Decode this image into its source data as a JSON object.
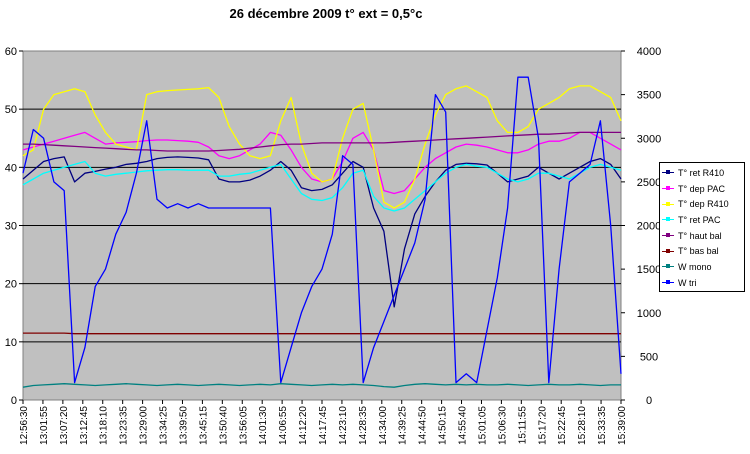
{
  "chart_data": {
    "type": "line",
    "title": "26 décembre 2009  t° ext = 0,5°c",
    "x_tick_labels": [
      "12:56:30",
      "13:01:55",
      "13:07:20",
      "13:12:45",
      "13:18:10",
      "13:23:35",
      "13:29:00",
      "13:34:25",
      "13:39:50",
      "13:45:15",
      "13:50:40",
      "13:56:05",
      "14:01:30",
      "14:06:55",
      "14:12:20",
      "14:17:45",
      "14:23:10",
      "14:28:35",
      "14:34:00",
      "14:39:25",
      "14:44:50",
      "14:50:15",
      "14:55:40",
      "15:01:05",
      "15:06:30",
      "15:11:55",
      "15:17:20",
      "15:22:45",
      "15:28:10",
      "15:33:35",
      "15:39:00"
    ],
    "y_left": {
      "min": 0,
      "max": 60,
      "ticks": [
        "0",
        "10",
        "20",
        "30",
        "40",
        "50",
        "60"
      ]
    },
    "y_right": {
      "min": 0,
      "max": 4000,
      "ticks": [
        "0",
        "500",
        "1000",
        "1500",
        "2000",
        "2500",
        "3000",
        "3500",
        "4000"
      ]
    },
    "grid": "horizontal",
    "legend_position": "right",
    "plot_background": "#c0c0c0",
    "series": [
      {
        "name": "T° ret R410",
        "color": "#000080",
        "axis": "left",
        "values": [
          38,
          39.5,
          41,
          41.5,
          41.8,
          37.5,
          39,
          39.3,
          39.7,
          40,
          40.5,
          40.7,
          41,
          41.5,
          41.7,
          41.8,
          41.7,
          41.6,
          41.3,
          38,
          37.5,
          37.5,
          37.8,
          38.5,
          39.5,
          41,
          39.5,
          36.5,
          36,
          36.2,
          37,
          39,
          41,
          40,
          33,
          29,
          16,
          26,
          32,
          35,
          37.5,
          39.5,
          40.5,
          40.7,
          40.6,
          40.4,
          39,
          37.5,
          38,
          38.5,
          40,
          39,
          38,
          39,
          40,
          41,
          41.5,
          40.5,
          38
        ]
      },
      {
        "name": "T° dep PAC",
        "color": "#ff00ff",
        "axis": "left",
        "values": [
          43,
          43.5,
          44,
          44.5,
          45,
          45.5,
          46,
          45,
          44,
          44.2,
          44.3,
          44.4,
          44.6,
          44.7,
          44.7,
          44.6,
          44.5,
          44.3,
          43.5,
          42,
          41.5,
          42,
          43,
          44,
          46,
          45.5,
          43,
          40,
          38,
          37.5,
          38,
          41,
          45,
          46,
          43,
          36,
          35.5,
          36,
          38,
          40,
          41.5,
          42.5,
          43.5,
          44,
          43.8,
          43.5,
          43,
          42.5,
          42.5,
          43,
          44,
          44.5,
          44.5,
          45,
          46,
          46,
          45,
          44,
          43
        ]
      },
      {
        "name": "T° dep R410",
        "color": "#ffff00",
        "axis": "left",
        "values": [
          42,
          43,
          50,
          52.5,
          53,
          53.5,
          53,
          49,
          46,
          44,
          43.5,
          43,
          52.5,
          53,
          53.2,
          53.3,
          53.4,
          53.5,
          53.7,
          52,
          47,
          44,
          42,
          41.5,
          42,
          48,
          52,
          44,
          39,
          37.5,
          38,
          45,
          50,
          51,
          43,
          34,
          33,
          34,
          38,
          44,
          49,
          52.5,
          53.5,
          54,
          53,
          52,
          48,
          46,
          46,
          47,
          50,
          51,
          52,
          53.5,
          54,
          54,
          53,
          52,
          48
        ]
      },
      {
        "name": "T° ret PAC",
        "color": "#00ffff",
        "axis": "left",
        "values": [
          37,
          38,
          39,
          39.5,
          40,
          40.5,
          41,
          39,
          38.5,
          38.8,
          39,
          39.2,
          39.4,
          39.5,
          39.6,
          39.6,
          39.5,
          39.5,
          39.5,
          38.5,
          38.5,
          38.8,
          39,
          39.5,
          40,
          40.5,
          38,
          35.5,
          34.5,
          34.3,
          34.8,
          36.5,
          39,
          39.5,
          35,
          33,
          32.5,
          33,
          34.5,
          36,
          37.5,
          39,
          40,
          40.5,
          40.2,
          40,
          39,
          38,
          37.5,
          38,
          39,
          39,
          38.5,
          38,
          39,
          40,
          40.5,
          40,
          39.5
        ]
      },
      {
        "name": "T° haut bal",
        "color": "#800080",
        "axis": "left",
        "values": [
          44,
          44,
          43.9,
          43.8,
          43.7,
          43.6,
          43.5,
          43.4,
          43.3,
          43.2,
          43.1,
          43,
          43,
          42.9,
          42.8,
          42.8,
          42.8,
          42.8,
          42.8,
          42.9,
          43,
          43.1,
          43.3,
          43.5,
          43.7,
          43.9,
          44,
          44,
          44.1,
          44.2,
          44.2,
          44.2,
          44.2,
          44.2,
          44.2,
          44.2,
          44.3,
          44.4,
          44.5,
          44.6,
          44.7,
          44.8,
          44.9,
          45,
          45.1,
          45.2,
          45.3,
          45.4,
          45.5,
          45.6,
          45.7,
          45.7,
          45.8,
          45.9,
          46,
          46,
          46,
          46,
          46
        ]
      },
      {
        "name": "T° bas bal",
        "color": "#800000",
        "axis": "left",
        "values": [
          11.5,
          11.5,
          11.5,
          11.5,
          11.5,
          11.4,
          11.4,
          11.4,
          11.4,
          11.4,
          11.4,
          11.4,
          11.4,
          11.4,
          11.4,
          11.4,
          11.4,
          11.4,
          11.4,
          11.4,
          11.4,
          11.4,
          11.4,
          11.4,
          11.4,
          11.4,
          11.4,
          11.4,
          11.4,
          11.4,
          11.4,
          11.4,
          11.4,
          11.4,
          11.4,
          11.4,
          11.4,
          11.4,
          11.4,
          11.4,
          11.4,
          11.4,
          11.4,
          11.4,
          11.4,
          11.4,
          11.4,
          11.4,
          11.4,
          11.4,
          11.4,
          11.4,
          11.4,
          11.4,
          11.4,
          11.4,
          11.4,
          11.4,
          11.4
        ]
      },
      {
        "name": "W mono",
        "color": "#008080",
        "axis": "left",
        "values": [
          2.2,
          2.5,
          2.6,
          2.7,
          2.8,
          2.7,
          2.6,
          2.5,
          2.6,
          2.7,
          2.8,
          2.7,
          2.6,
          2.5,
          2.6,
          2.7,
          2.6,
          2.5,
          2.6,
          2.7,
          2.6,
          2.5,
          2.6,
          2.7,
          2.6,
          2.8,
          2.7,
          2.6,
          2.5,
          2.6,
          2.7,
          2.6,
          2.7,
          2.6,
          2.5,
          2.3,
          2.2,
          2.5,
          2.7,
          2.8,
          2.7,
          2.6,
          2.7,
          2.6,
          2.7,
          2.6,
          2.6,
          2.7,
          2.6,
          2.5,
          2.6,
          2.7,
          2.6,
          2.6,
          2.7,
          2.6,
          2.5,
          2.6,
          2.6
        ]
      },
      {
        "name": "W tri",
        "color": "#0000ff",
        "axis": "right",
        "values": [
          2600,
          3100,
          3000,
          2500,
          2400,
          200,
          600,
          1300,
          1500,
          1900,
          2150,
          2600,
          3200,
          2300,
          2200,
          2250,
          2200,
          2250,
          2200,
          2200,
          2200,
          2200,
          2200,
          2200,
          2200,
          200,
          600,
          1000,
          1300,
          1500,
          1900,
          2800,
          2700,
          200,
          600,
          900,
          1200,
          1500,
          1800,
          2300,
          3500,
          3300,
          200,
          300,
          200,
          800,
          1400,
          2200,
          3700,
          3700,
          3000,
          200,
          1500,
          2500,
          2600,
          2700,
          3200,
          2000,
          300
        ]
      }
    ]
  }
}
